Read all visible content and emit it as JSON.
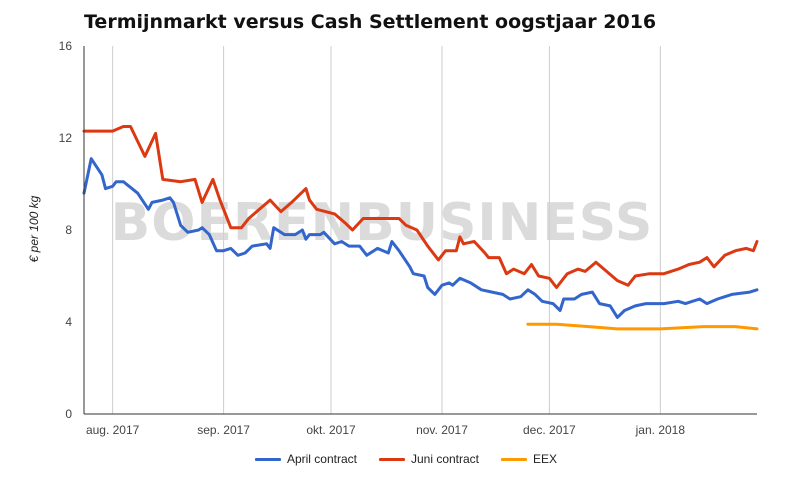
{
  "chart_data": {
    "type": "line",
    "title": "Termijnmarkt versus Cash Settlement oogstjaar 2016",
    "ylabel": "€ per 100 kg",
    "ylim": [
      0,
      16
    ],
    "yticks": [
      0,
      4,
      8,
      12,
      16
    ],
    "xticks": [
      "aug. 2017",
      "sep. 2017",
      "okt. 2017",
      "nov. 2017",
      "dec. 2017",
      "jan. 2018"
    ],
    "x_range": [
      "2017-07-24",
      "2018-01-28"
    ],
    "grid": "vertical",
    "legend_position": "bottom",
    "watermark": "BOERENBUSINESS",
    "series": [
      {
        "name": "April contract",
        "color": "#3366cc",
        "points": [
          [
            "2017-07-24",
            9.6
          ],
          [
            "2017-07-26",
            11.1
          ],
          [
            "2017-07-29",
            10.4
          ],
          [
            "2017-07-30",
            9.8
          ],
          [
            "2017-08-01",
            9.9
          ],
          [
            "2017-08-02",
            10.1
          ],
          [
            "2017-08-04",
            10.1
          ],
          [
            "2017-08-08",
            9.6
          ],
          [
            "2017-08-11",
            8.9
          ],
          [
            "2017-08-12",
            9.2
          ],
          [
            "2017-08-15",
            9.3
          ],
          [
            "2017-08-17",
            9.4
          ],
          [
            "2017-08-18",
            9.2
          ],
          [
            "2017-08-20",
            8.2
          ],
          [
            "2017-08-22",
            7.9
          ],
          [
            "2017-08-25",
            8.0
          ],
          [
            "2017-08-26",
            8.1
          ],
          [
            "2017-08-28",
            7.8
          ],
          [
            "2017-08-30",
            7.1
          ],
          [
            "2017-09-01",
            7.1
          ],
          [
            "2017-09-03",
            7.2
          ],
          [
            "2017-09-05",
            6.9
          ],
          [
            "2017-09-07",
            7.0
          ],
          [
            "2017-09-09",
            7.3
          ],
          [
            "2017-09-13",
            7.4
          ],
          [
            "2017-09-14",
            7.2
          ],
          [
            "2017-09-15",
            8.1
          ],
          [
            "2017-09-18",
            7.8
          ],
          [
            "2017-09-21",
            7.8
          ],
          [
            "2017-09-23",
            8.0
          ],
          [
            "2017-09-24",
            7.6
          ],
          [
            "2017-09-25",
            7.8
          ],
          [
            "2017-09-28",
            7.8
          ],
          [
            "2017-09-29",
            7.9
          ],
          [
            "2017-10-02",
            7.4
          ],
          [
            "2017-10-04",
            7.5
          ],
          [
            "2017-10-06",
            7.3
          ],
          [
            "2017-10-09",
            7.3
          ],
          [
            "2017-10-11",
            6.9
          ],
          [
            "2017-10-14",
            7.2
          ],
          [
            "2017-10-17",
            7.0
          ],
          [
            "2017-10-18",
            7.5
          ],
          [
            "2017-10-20",
            7.1
          ],
          [
            "2017-10-23",
            6.4
          ],
          [
            "2017-10-24",
            6.1
          ],
          [
            "2017-10-27",
            6.0
          ],
          [
            "2017-10-28",
            5.5
          ],
          [
            "2017-10-30",
            5.2
          ],
          [
            "2017-11-01",
            5.6
          ],
          [
            "2017-11-03",
            5.7
          ],
          [
            "2017-11-04",
            5.6
          ],
          [
            "2017-11-06",
            5.9
          ],
          [
            "2017-11-09",
            5.7
          ],
          [
            "2017-11-12",
            5.4
          ],
          [
            "2017-11-15",
            5.3
          ],
          [
            "2017-11-18",
            5.2
          ],
          [
            "2017-11-20",
            5.0
          ],
          [
            "2017-11-23",
            5.1
          ],
          [
            "2017-11-25",
            5.4
          ],
          [
            "2017-11-27",
            5.2
          ],
          [
            "2017-11-29",
            4.9
          ],
          [
            "2017-12-02",
            4.8
          ],
          [
            "2017-12-04",
            4.5
          ],
          [
            "2017-12-05",
            5.0
          ],
          [
            "2017-12-08",
            5.0
          ],
          [
            "2017-12-10",
            5.2
          ],
          [
            "2017-12-13",
            5.3
          ],
          [
            "2017-12-15",
            4.8
          ],
          [
            "2017-12-18",
            4.7
          ],
          [
            "2017-12-20",
            4.2
          ],
          [
            "2017-12-22",
            4.5
          ],
          [
            "2017-12-25",
            4.7
          ],
          [
            "2017-12-28",
            4.8
          ],
          [
            "2017-12-31",
            4.8
          ],
          [
            "2018-01-02",
            4.8
          ],
          [
            "2018-01-06",
            4.9
          ],
          [
            "2018-01-08",
            4.8
          ],
          [
            "2018-01-12",
            5.0
          ],
          [
            "2018-01-14",
            4.8
          ],
          [
            "2018-01-17",
            5.0
          ],
          [
            "2018-01-19",
            5.1
          ],
          [
            "2018-01-21",
            5.2
          ],
          [
            "2018-01-26",
            5.3
          ],
          [
            "2018-01-28",
            5.4
          ]
        ]
      },
      {
        "name": "Juni contract",
        "color": "#dc3912",
        "points": [
          [
            "2017-07-24",
            12.3
          ],
          [
            "2017-08-01",
            12.3
          ],
          [
            "2017-08-04",
            12.5
          ],
          [
            "2017-08-06",
            12.5
          ],
          [
            "2017-08-10",
            11.2
          ],
          [
            "2017-08-13",
            12.2
          ],
          [
            "2017-08-15",
            10.2
          ],
          [
            "2017-08-20",
            10.1
          ],
          [
            "2017-08-24",
            10.2
          ],
          [
            "2017-08-26",
            9.2
          ],
          [
            "2017-08-29",
            10.2
          ],
          [
            "2017-08-31",
            9.3
          ],
          [
            "2017-09-03",
            8.1
          ],
          [
            "2017-09-06",
            8.1
          ],
          [
            "2017-09-08",
            8.5
          ],
          [
            "2017-09-11",
            8.9
          ],
          [
            "2017-09-14",
            9.3
          ],
          [
            "2017-09-17",
            8.8
          ],
          [
            "2017-09-20",
            9.2
          ],
          [
            "2017-09-24",
            9.8
          ],
          [
            "2017-09-25",
            9.3
          ],
          [
            "2017-09-27",
            8.9
          ],
          [
            "2017-10-02",
            8.7
          ],
          [
            "2017-10-05",
            8.3
          ],
          [
            "2017-10-07",
            8.0
          ],
          [
            "2017-10-10",
            8.5
          ],
          [
            "2017-10-15",
            8.5
          ],
          [
            "2017-10-20",
            8.5
          ],
          [
            "2017-10-22",
            8.2
          ],
          [
            "2017-10-25",
            8.0
          ],
          [
            "2017-10-28",
            7.3
          ],
          [
            "2017-10-31",
            6.7
          ],
          [
            "2017-11-02",
            7.1
          ],
          [
            "2017-11-05",
            7.1
          ],
          [
            "2017-11-06",
            7.7
          ],
          [
            "2017-11-07",
            7.4
          ],
          [
            "2017-11-10",
            7.5
          ],
          [
            "2017-11-13",
            7.0
          ],
          [
            "2017-11-14",
            6.8
          ],
          [
            "2017-11-17",
            6.8
          ],
          [
            "2017-11-19",
            6.1
          ],
          [
            "2017-11-21",
            6.3
          ],
          [
            "2017-11-24",
            6.1
          ],
          [
            "2017-11-26",
            6.5
          ],
          [
            "2017-11-28",
            6.0
          ],
          [
            "2017-12-01",
            5.9
          ],
          [
            "2017-12-03",
            5.5
          ],
          [
            "2017-12-06",
            6.1
          ],
          [
            "2017-12-09",
            6.3
          ],
          [
            "2017-12-11",
            6.2
          ],
          [
            "2017-12-14",
            6.6
          ],
          [
            "2017-12-17",
            6.2
          ],
          [
            "2017-12-20",
            5.8
          ],
          [
            "2017-12-23",
            5.6
          ],
          [
            "2017-12-25",
            6.0
          ],
          [
            "2017-12-29",
            6.1
          ],
          [
            "2018-01-02",
            6.1
          ],
          [
            "2018-01-06",
            6.3
          ],
          [
            "2018-01-09",
            6.5
          ],
          [
            "2018-01-12",
            6.6
          ],
          [
            "2018-01-14",
            6.8
          ],
          [
            "2018-01-16",
            6.4
          ],
          [
            "2018-01-19",
            6.9
          ],
          [
            "2018-01-22",
            7.1
          ],
          [
            "2018-01-25",
            7.2
          ],
          [
            "2018-01-27",
            7.1
          ],
          [
            "2018-01-28",
            7.5
          ]
        ]
      },
      {
        "name": "EEX",
        "color": "#ff9900",
        "points": [
          [
            "2017-11-25",
            3.9
          ],
          [
            "2017-12-03",
            3.9
          ],
          [
            "2017-12-12",
            3.8
          ],
          [
            "2017-12-20",
            3.7
          ],
          [
            "2018-01-01",
            3.7
          ],
          [
            "2018-01-13",
            3.8
          ],
          [
            "2018-01-22",
            3.8
          ],
          [
            "2018-01-28",
            3.7
          ]
        ]
      }
    ]
  }
}
